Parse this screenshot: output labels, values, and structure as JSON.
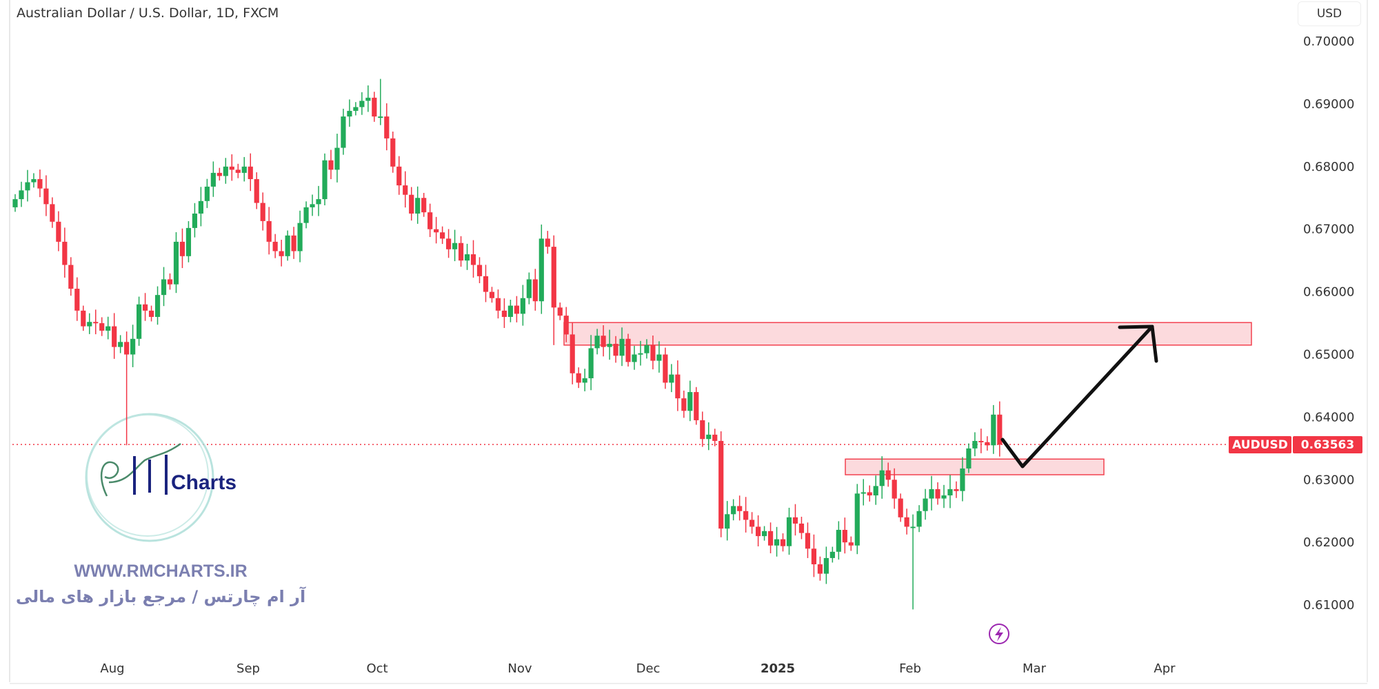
{
  "header": {
    "title": "Australian Dollar / U.S. Dollar, 1D, FXCM",
    "currency_button": "USD"
  },
  "price_tag": {
    "symbol": "AUDUSD",
    "value": "0.63563",
    "color": "#f23645"
  },
  "watermark": {
    "logo_text": "RM Charts",
    "url": "WWW.RMCHARTS.IR",
    "tagline": "آر ام چارتس / مرجع بازار های مالی"
  },
  "colors": {
    "up": "#22ab5a",
    "down": "#f23645",
    "zone_fill": "#fcd9dc",
    "zone_stroke": "#f23645"
  },
  "chart_data": {
    "type": "candlestick",
    "title": "Australian Dollar / U.S. Dollar, 1D, FXCM",
    "ylim": [
      0.6036,
      0.7066
    ],
    "y_ticks": [
      "0.70000",
      "0.69000",
      "0.68000",
      "0.67000",
      "0.66000",
      "0.65000",
      "0.64000",
      "0.63000",
      "0.62000",
      "0.61000"
    ],
    "x_ticks": [
      {
        "label": "Aug",
        "bold": false
      },
      {
        "label": "Sep",
        "bold": false
      },
      {
        "label": "Oct",
        "bold": false
      },
      {
        "label": "Nov",
        "bold": false
      },
      {
        "label": "Dec",
        "bold": false
      },
      {
        "label": "2025",
        "bold": true
      },
      {
        "label": "Feb",
        "bold": false
      },
      {
        "label": "Mar",
        "bold": false
      },
      {
        "label": "Apr",
        "bold": false
      }
    ],
    "first_open": 0.6735,
    "close": [
      0.6748,
      0.6762,
      0.6775,
      0.678,
      0.6765,
      0.674,
      0.6712,
      0.668,
      0.6643,
      0.6605,
      0.657,
      0.6545,
      0.6552,
      0.655,
      0.6538,
      0.6545,
      0.6512,
      0.652,
      0.65,
      0.6525,
      0.658,
      0.657,
      0.656,
      0.6595,
      0.662,
      0.6612,
      0.668,
      0.6657,
      0.6702,
      0.6725,
      0.6745,
      0.6768,
      0.679,
      0.6785,
      0.68,
      0.6795,
      0.679,
      0.68,
      0.678,
      0.6742,
      0.6713,
      0.668,
      0.6665,
      0.6657,
      0.669,
      0.6665,
      0.671,
      0.6735,
      0.674,
      0.6748,
      0.681,
      0.6795,
      0.683,
      0.688,
      0.6889,
      0.6895,
      0.6905,
      0.691,
      0.688,
      0.688,
      0.6845,
      0.68,
      0.677,
      0.6755,
      0.6725,
      0.675,
      0.6727,
      0.67,
      0.6695,
      0.6685,
      0.6668,
      0.6678,
      0.665,
      0.666,
      0.6643,
      0.6625,
      0.66,
      0.659,
      0.657,
      0.656,
      0.6578,
      0.6565,
      0.659,
      0.662,
      0.6585,
      0.6685,
      0.6672,
      0.6575,
      0.6562,
      0.6532,
      0.647,
      0.6455,
      0.6462,
      0.651,
      0.653,
      0.6512,
      0.6517,
      0.6498,
      0.6525,
      0.6488,
      0.65,
      0.6502,
      0.6515,
      0.649,
      0.65,
      0.6455,
      0.6468,
      0.643,
      0.641,
      0.644,
      0.6395,
      0.6365,
      0.6372,
      0.6362,
      0.6222,
      0.6245,
      0.6258,
      0.625,
      0.6236,
      0.6225,
      0.621,
      0.6218,
      0.6195,
      0.6205,
      0.6194,
      0.624,
      0.623,
      0.6215,
      0.619,
      0.6165,
      0.615,
      0.6175,
      0.6185,
      0.622,
      0.62,
      0.6195,
      0.6278,
      0.628,
      0.6275,
      0.629,
      0.6315,
      0.63,
      0.627,
      0.624,
      0.6225,
      0.6225,
      0.625,
      0.627,
      0.6285,
      0.627,
      0.6275,
      0.6285,
      0.6282,
      0.6318,
      0.635,
      0.6362,
      0.636,
      0.6355,
      0.6404,
      0.6356
    ],
    "long_wicks": [
      {
        "index": 18,
        "low": 0.6355
      },
      {
        "index": 87,
        "low": 0.6515
      },
      {
        "index": 145,
        "low": 0.6093
      },
      {
        "index": 59,
        "high": 0.694
      }
    ],
    "last_price": 0.63563,
    "zones": [
      {
        "name": "resistance-zone",
        "top": 0.6551,
        "bottom": 0.6515
      },
      {
        "name": "support-zone",
        "top": 0.6333,
        "bottom": 0.6308
      }
    ],
    "projection": "black arrow: pullback to support zone, then rise to resistance zone"
  }
}
